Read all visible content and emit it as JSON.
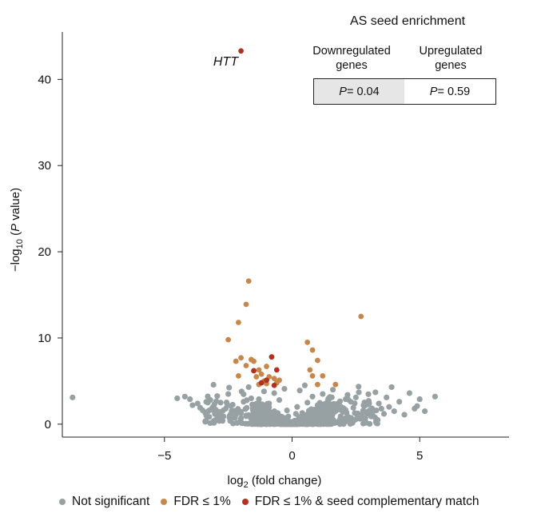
{
  "chart_data": {
    "type": "scatter",
    "title": "",
    "xlabel": "log2 (fold change)",
    "ylabel": "-log10 (P value)",
    "xlim": [
      -9,
      8.5
    ],
    "ylim": [
      -1.5,
      45.5
    ],
    "x_ticks": [
      -5,
      0,
      5
    ],
    "y_ticks": [
      0,
      10,
      20,
      30,
      40
    ],
    "x_tick_labels": [
      "−5",
      "0",
      "5"
    ],
    "y_tick_labels": [
      "0",
      "10",
      "20",
      "30",
      "40"
    ],
    "grid": false,
    "legend_position": "bottom",
    "colors": {
      "not_significant": "#97a1a4",
      "fdr": "#c8874a",
      "fdr_seed": "#b2321f"
    },
    "series": [
      {
        "name": "Not significant",
        "color": "#97a1a4",
        "points": [
          [
            -8.6,
            3.1
          ],
          [
            -4.5,
            3.0
          ],
          [
            -4.2,
            3.2
          ],
          [
            -4.0,
            2.9
          ],
          [
            -3.9,
            2.2
          ],
          [
            -3.7,
            2.4
          ],
          [
            -3.6,
            1.9
          ],
          [
            -3.5,
            1.6
          ],
          [
            -3.4,
            1.3
          ],
          [
            -3.2,
            2.8
          ],
          [
            -3.1,
            2.0
          ],
          [
            -3.0,
            1.7
          ],
          [
            -2.9,
            1.2
          ],
          [
            -2.8,
            2.5
          ],
          [
            -2.7,
            0.9
          ],
          [
            -2.5,
            3.5
          ],
          [
            -2.4,
            2.1
          ],
          [
            -2.3,
            0.8
          ],
          [
            -2.2,
            1.1
          ],
          [
            -2.1,
            1.5
          ],
          [
            -2.0,
            0.7
          ],
          [
            -1.9,
            2.6
          ],
          [
            -1.8,
            1.0
          ],
          [
            -1.7,
            4.3
          ],
          [
            -1.6,
            3.0
          ],
          [
            -1.5,
            1.4
          ],
          [
            -1.4,
            0.6
          ],
          [
            -1.3,
            2.9
          ],
          [
            -1.2,
            0.8
          ],
          [
            -1.1,
            3.8
          ],
          [
            -1.0,
            1.2
          ],
          [
            -0.9,
            2.4
          ],
          [
            -0.8,
            0.5
          ],
          [
            -0.7,
            3.6
          ],
          [
            -0.6,
            1.1
          ],
          [
            -0.5,
            2.8
          ],
          [
            -0.4,
            0.7
          ],
          [
            -0.3,
            4.1
          ],
          [
            -0.2,
            1.6
          ],
          [
            -0.1,
            0.3
          ],
          [
            0.1,
            0.4
          ],
          [
            0.2,
            2.0
          ],
          [
            0.3,
            3.9
          ],
          [
            0.4,
            1.3
          ],
          [
            0.5,
            4.5
          ],
          [
            0.6,
            2.5
          ],
          [
            0.7,
            0.9
          ],
          [
            0.8,
            3.2
          ],
          [
            0.9,
            1.5
          ],
          [
            1.0,
            2.2
          ],
          [
            1.1,
            0.8
          ],
          [
            1.2,
            3.5
          ],
          [
            1.3,
            1.1
          ],
          [
            1.4,
            2.7
          ],
          [
            1.5,
            0.6
          ],
          [
            1.6,
            4.0
          ],
          [
            1.7,
            1.8
          ],
          [
            1.8,
            2.4
          ],
          [
            1.9,
            0.9
          ],
          [
            2.0,
            1.4
          ],
          [
            2.1,
            2.9
          ],
          [
            2.2,
            0.7
          ],
          [
            2.4,
            1.9
          ],
          [
            2.5,
            3.1
          ],
          [
            2.6,
            1.0
          ],
          [
            2.8,
            2.2
          ],
          [
            2.9,
            1.4
          ],
          [
            3.0,
            2.7
          ],
          [
            3.1,
            0.9
          ],
          [
            3.3,
            1.6
          ],
          [
            3.4,
            2.4
          ],
          [
            3.6,
            1.2
          ],
          [
            3.7,
            3.1
          ],
          [
            3.8,
            2.0
          ],
          [
            3.9,
            4.3
          ],
          [
            4.0,
            1.5
          ],
          [
            4.2,
            2.6
          ],
          [
            4.4,
            1.1
          ],
          [
            4.6,
            3.6
          ],
          [
            4.8,
            1.8
          ],
          [
            4.9,
            2.1
          ],
          [
            5.0,
            2.9
          ],
          [
            5.2,
            1.5
          ],
          [
            5.6,
            3.2
          ],
          [
            3.5,
            1.8
          ],
          [
            2.3,
            2.6
          ],
          [
            -2.6,
            1.8
          ],
          [
            -3.3,
            2.5
          ],
          [
            -0.05,
            0.2
          ],
          [
            0.05,
            0.3
          ],
          [
            -0.15,
            0.9
          ],
          [
            0.15,
            1.2
          ]
        ]
      },
      {
        "name": "FDR ≤ 1%",
        "color": "#c8874a",
        "points": [
          [
            -1.7,
            16.6
          ],
          [
            -1.8,
            13.9
          ],
          [
            -2.1,
            11.8
          ],
          [
            -2.5,
            9.8
          ],
          [
            -2.2,
            7.3
          ],
          [
            -2.0,
            7.7
          ],
          [
            -1.6,
            7.5
          ],
          [
            -1.8,
            6.8
          ],
          [
            -1.5,
            7.3
          ],
          [
            -1.3,
            6.3
          ],
          [
            -1.0,
            6.7
          ],
          [
            -1.2,
            5.8
          ],
          [
            -0.9,
            5.5
          ],
          [
            -1.4,
            5.5
          ],
          [
            -1.1,
            5.0
          ],
          [
            -0.7,
            5.3
          ],
          [
            -0.6,
            4.8
          ],
          [
            -1.3,
            4.6
          ],
          [
            -2.1,
            5.6
          ],
          [
            -1.0,
            4.7
          ],
          [
            0.6,
            9.5
          ],
          [
            0.8,
            8.6
          ],
          [
            1.0,
            7.4
          ],
          [
            0.7,
            6.3
          ],
          [
            0.8,
            5.6
          ],
          [
            1.2,
            5.6
          ],
          [
            1.0,
            4.6
          ],
          [
            1.7,
            4.6
          ],
          [
            2.7,
            12.5
          ],
          [
            -0.5,
            5.1
          ]
        ]
      },
      {
        "name": "FDR ≤ 1% & seed complementary match",
        "color": "#b2321f",
        "points": [
          [
            -2.0,
            43.3
          ],
          [
            -0.8,
            7.8
          ],
          [
            -1.5,
            6.2
          ],
          [
            -0.6,
            6.3
          ],
          [
            -1.0,
            5.1
          ],
          [
            -0.7,
            4.5
          ],
          [
            -1.2,
            4.8
          ]
        ]
      }
    ],
    "annotations": [
      {
        "text": "HTT",
        "x": -2.6,
        "y": 41.6
      }
    ]
  },
  "inset": {
    "title": "AS seed enrichment",
    "columns": [
      {
        "label_line1": "Downregulated",
        "label_line2": "genes",
        "p_prefix": "P",
        "p_value": " = 0.04",
        "fill": "#e6e6e6"
      },
      {
        "label_line1": "Upregulated",
        "label_line2": "genes",
        "p_prefix": "P",
        "p_value": " = 0.59",
        "fill": "#ffffff"
      }
    ]
  },
  "legend": [
    {
      "label": "Not significant",
      "color": "#97a1a4"
    },
    {
      "label": "FDR ≤ 1%",
      "color": "#c8874a"
    },
    {
      "label": "FDR ≤ 1% & seed complementary match",
      "color": "#b2321f"
    }
  ]
}
